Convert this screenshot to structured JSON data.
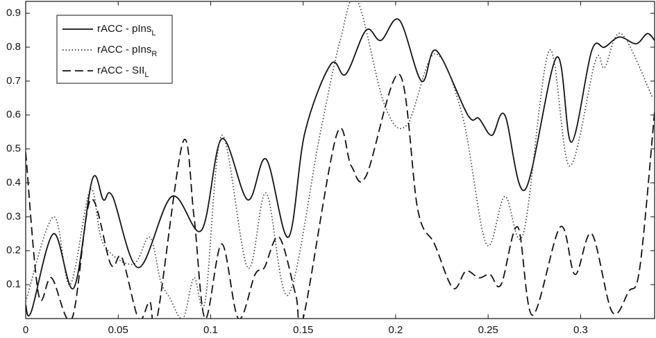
{
  "chart_data": {
    "type": "line",
    "xlim": [
      0,
      0.34
    ],
    "ylim": [
      0,
      0.935
    ],
    "xticks": [
      0,
      0.05,
      0.1,
      0.15,
      0.2,
      0.25,
      0.3
    ],
    "yticks": [
      0.1,
      0.2,
      0.3,
      0.4,
      0.5,
      0.6,
      0.7,
      0.8,
      0.9
    ],
    "legend": "upper left",
    "series": [
      {
        "name": "rACC - pIns",
        "name_subscript": "L",
        "color": "#111111",
        "dash": "solid",
        "x": [
          0,
          0.003,
          0.015,
          0.026,
          0.036,
          0.042,
          0.047,
          0.061,
          0.079,
          0.095,
          0.106,
          0.12,
          0.13,
          0.142,
          0.151,
          0.165,
          0.173,
          0.184,
          0.192,
          0.202,
          0.214,
          0.222,
          0.239,
          0.245,
          0.252,
          0.259,
          0.27,
          0.287,
          0.295,
          0.306,
          0.313,
          0.321,
          0.33,
          0.336,
          0.34
        ],
        "values": [
          0.04,
          0.02,
          0.25,
          0.09,
          0.41,
          0.35,
          0.36,
          0.15,
          0.36,
          0.26,
          0.53,
          0.35,
          0.47,
          0.24,
          0.55,
          0.75,
          0.72,
          0.85,
          0.82,
          0.88,
          0.7,
          0.79,
          0.6,
          0.59,
          0.54,
          0.6,
          0.38,
          0.77,
          0.52,
          0.79,
          0.8,
          0.83,
          0.81,
          0.84,
          0.82
        ]
      },
      {
        "name": "rACC - pIns",
        "name_subscript": "R",
        "color": "#333333",
        "dash": "dotted",
        "x": [
          0,
          0.015,
          0.024,
          0.035,
          0.042,
          0.058,
          0.067,
          0.073,
          0.078,
          0.085,
          0.091,
          0.097,
          0.106,
          0.12,
          0.13,
          0.142,
          0.159,
          0.17,
          0.179,
          0.194,
          0.206,
          0.221,
          0.236,
          0.249,
          0.259,
          0.269,
          0.283,
          0.294,
          0.308,
          0.313,
          0.322,
          0.339
        ],
        "values": [
          0.05,
          0.3,
          0.1,
          0.38,
          0.22,
          0.16,
          0.24,
          0.11,
          0.06,
          0.0,
          0.12,
          0.05,
          0.54,
          0.15,
          0.37,
          0.07,
          0.54,
          0.82,
          0.94,
          0.63,
          0.57,
          0.78,
          0.6,
          0.22,
          0.36,
          0.25,
          0.79,
          0.45,
          0.76,
          0.74,
          0.84,
          0.65
        ]
      },
      {
        "name": "rACC - SII",
        "name_subscript": "L",
        "color": "#111111",
        "dash": "dashed",
        "x": [
          0,
          0.007,
          0.014,
          0.025,
          0.035,
          0.046,
          0.052,
          0.061,
          0.067,
          0.071,
          0.085,
          0.091,
          0.097,
          0.106,
          0.115,
          0.124,
          0.129,
          0.137,
          0.146,
          0.15,
          0.168,
          0.176,
          0.184,
          0.202,
          0.212,
          0.221,
          0.231,
          0.238,
          0.245,
          0.251,
          0.257,
          0.266,
          0.274,
          0.289,
          0.297,
          0.306,
          0.317,
          0.326,
          0.332,
          0.34
        ],
        "values": [
          0.49,
          0.07,
          0.12,
          0.0,
          0.35,
          0.16,
          0.18,
          0.0,
          0.05,
          0.0,
          0.52,
          0.3,
          0.0,
          0.22,
          0.0,
          0.13,
          0.15,
          0.24,
          0.07,
          0.0,
          0.54,
          0.45,
          0.42,
          0.72,
          0.32,
          0.22,
          0.09,
          0.14,
          0.12,
          0.13,
          0.1,
          0.27,
          0.01,
          0.27,
          0.13,
          0.25,
          0.02,
          0.08,
          0.15,
          0.61
        ]
      }
    ]
  }
}
